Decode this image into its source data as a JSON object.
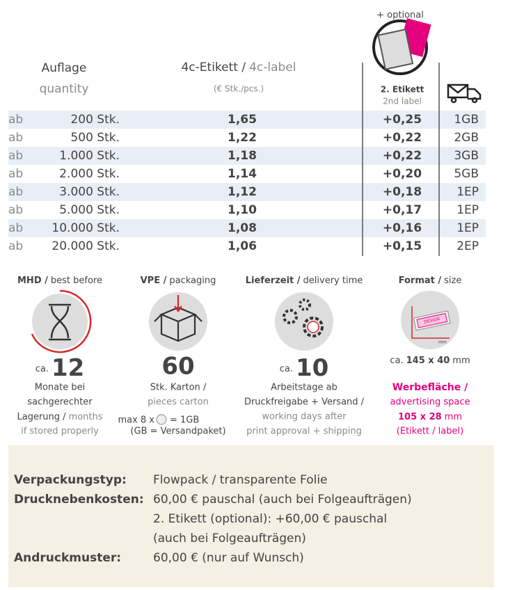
{
  "header": {
    "optional": "+ optional",
    "quantity_de": "Auflage",
    "quantity_en": "quantity",
    "price_de": "4c-Etikett /",
    "price_en": "4c-label",
    "price_unit": "(€ Stk./pcs.)",
    "second_de": "2. Etikett",
    "second_en": "2nd label"
  },
  "table": {
    "rows": [
      [
        "ab",
        "200 Stk.",
        "1,65",
        "+0,25",
        "1GB"
      ],
      [
        "ab",
        "500 Stk.",
        "1,22",
        "+0,22",
        "2GB"
      ],
      [
        "ab",
        "1.000 Stk.",
        "1,18",
        "+0,22",
        "3GB"
      ],
      [
        "ab",
        "2.000 Stk.",
        "1,14",
        "+0,20",
        "5GB"
      ],
      [
        "ab",
        "3.000 Stk.",
        "1,12",
        "+0,18",
        "1EP"
      ],
      [
        "ab",
        "5.000 Stk.",
        "1,10",
        "+0,17",
        "1EP"
      ],
      [
        "ab",
        "10.000 Stk.",
        "1,08",
        "+0,16",
        "1EP"
      ],
      [
        "ab",
        "20.000 Stk.",
        "1,06",
        "+0,15",
        "2EP"
      ]
    ]
  },
  "info": {
    "mhd": {
      "title_de": "MHD /",
      "title_en": "best before",
      "prefix": "ca.",
      "number": "12",
      "line1": "Monate bei",
      "line2": "sachgerechter",
      "line3_de": "Lagerung /",
      "line3_en": "months",
      "line4": "if stored properly"
    },
    "vpe": {
      "title_de": "VPE /",
      "title_en": "packaging",
      "number": "60",
      "line1": "Stk. Karton /",
      "line2": "pieces carton",
      "line3_pre": "max 8 x",
      "line3_post": "= 1GB",
      "line4": "(GB = Versandpaket)"
    },
    "delivery": {
      "title_de": "Lieferzeit /",
      "title_en": "delivery time",
      "prefix": "ca.",
      "number": "10",
      "line1": "Arbeitstage ab",
      "line2": "Druckfreigabe + Versand /",
      "line3": "working days after",
      "line4": "print approval + shipping"
    },
    "format": {
      "title_de": "Format /",
      "title_en": "size",
      "icon_text": "DESIGN",
      "icon_unit": "mm",
      "size_prefix": "ca.",
      "size": "145 x 40",
      "size_unit": "mm",
      "line1_de": "Werbefläche /",
      "line1_en": "advertising space",
      "area": "105 x 28",
      "area_unit": "mm",
      "line3": "(Etikett / label)"
    }
  },
  "details": [
    {
      "label": "Verpackungstyp:",
      "lines": [
        "Flowpack / transparente Folie"
      ]
    },
    {
      "label": "Drucknebenkosten:",
      "lines": [
        "60,00 € pauschal (auch bei Folgeaufträgen)",
        "2. Etikett (optional): +60,00 € pauschal",
        "(auch bei Folgeaufträgen)"
      ]
    },
    {
      "label": "Andruckmuster:",
      "lines": [
        "60,00 € (nur auf Wunsch)"
      ]
    }
  ]
}
